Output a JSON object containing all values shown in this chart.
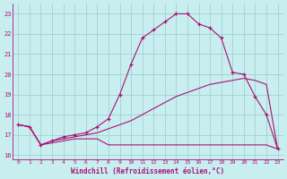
{
  "xlabel": "Windchill (Refroidissement éolien,°C)",
  "bg_color": "#c8eef0",
  "line_color": "#aa1177",
  "xlim": [
    -0.5,
    23.5
  ],
  "ylim": [
    15.8,
    23.5
  ],
  "xticks": [
    0,
    1,
    2,
    3,
    4,
    5,
    6,
    7,
    8,
    9,
    10,
    11,
    12,
    13,
    14,
    15,
    16,
    17,
    18,
    19,
    20,
    21,
    22,
    23
  ],
  "yticks": [
    16,
    17,
    18,
    19,
    20,
    21,
    22,
    23
  ],
  "grid_color": "#99cccc",
  "line1_x": [
    0,
    1,
    2,
    3,
    4,
    5,
    6,
    7,
    8,
    9,
    10,
    11,
    12,
    13,
    14,
    15,
    16,
    17,
    18,
    19,
    20,
    21,
    22,
    23
  ],
  "line1_y": [
    17.5,
    17.4,
    16.5,
    16.6,
    16.7,
    16.8,
    16.8,
    16.8,
    16.5,
    16.5,
    16.5,
    16.5,
    16.5,
    16.5,
    16.5,
    16.5,
    16.5,
    16.5,
    16.5,
    16.5,
    16.5,
    16.5,
    16.5,
    16.3
  ],
  "line2_x": [
    0,
    1,
    2,
    3,
    4,
    5,
    6,
    7,
    8,
    9,
    10,
    11,
    12,
    13,
    14,
    15,
    16,
    17,
    18,
    19,
    20,
    21,
    22,
    23
  ],
  "line2_y": [
    17.5,
    17.4,
    16.5,
    16.7,
    16.8,
    16.9,
    17.0,
    17.1,
    17.3,
    17.5,
    17.7,
    18.0,
    18.3,
    18.6,
    18.9,
    19.1,
    19.3,
    19.5,
    19.6,
    19.7,
    19.8,
    19.7,
    19.5,
    16.3
  ],
  "line3_x": [
    0,
    1,
    2,
    3,
    4,
    5,
    6,
    7,
    8,
    9,
    10,
    11,
    12,
    13,
    14,
    15,
    16,
    17,
    18,
    19,
    20,
    21,
    22,
    23
  ],
  "line3_y": [
    17.5,
    17.4,
    16.5,
    16.7,
    16.9,
    17.0,
    17.1,
    17.4,
    17.8,
    19.0,
    20.5,
    21.8,
    22.2,
    22.6,
    23.0,
    23.0,
    22.5,
    22.3,
    21.8,
    20.1,
    20.0,
    18.9,
    18.0,
    16.3
  ]
}
